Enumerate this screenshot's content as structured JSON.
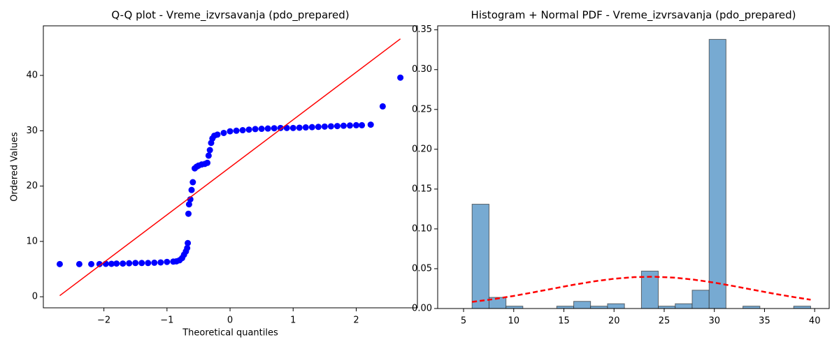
{
  "chart_data": [
    {
      "type": "scatter",
      "title": "Q-Q plot - Vreme_izvrsavanja (pdo_prepared)",
      "xlabel": "Theoretical quantiles",
      "ylabel": "Ordered Values",
      "color": "#0000ff",
      "x": [
        -2.7,
        -2.39,
        -2.2,
        -2.07,
        -1.97,
        -1.88,
        -1.8,
        -1.7,
        -1.6,
        -1.5,
        -1.4,
        -1.3,
        -1.2,
        -1.1,
        -1.0,
        -0.9,
        -0.85,
        -0.8,
        -0.76,
        -0.73,
        -0.7,
        -0.68,
        -0.67,
        -0.66,
        -0.65,
        -0.63,
        -0.61,
        -0.59,
        -0.56,
        -0.53,
        -0.5,
        -0.45,
        -0.4,
        -0.36,
        -0.34,
        -0.32,
        -0.3,
        -0.28,
        -0.25,
        -0.2,
        -0.1,
        0,
        0.1,
        0.2,
        0.3,
        0.4,
        0.5,
        0.6,
        0.7,
        0.8,
        0.9,
        1.0,
        1.1,
        1.2,
        1.3,
        1.4,
        1.5,
        1.6,
        1.7,
        1.8,
        1.9,
        2.0,
        2.09,
        2.23,
        2.42,
        2.7
      ],
      "values": [
        5.9,
        5.9,
        5.9,
        5.9,
        5.95,
        5.95,
        6.0,
        6.0,
        6.05,
        6.1,
        6.1,
        6.1,
        6.15,
        6.2,
        6.3,
        6.35,
        6.4,
        6.6,
        7.0,
        7.6,
        8.2,
        8.8,
        9.7,
        15.0,
        16.7,
        17.6,
        19.3,
        20.7,
        23.2,
        23.5,
        23.7,
        23.9,
        24.0,
        24.2,
        25.5,
        26.5,
        27.8,
        28.6,
        29.1,
        29.3,
        29.6,
        29.9,
        30.0,
        30.1,
        30.2,
        30.3,
        30.35,
        30.4,
        30.45,
        30.5,
        30.5,
        30.5,
        30.55,
        30.6,
        30.65,
        30.7,
        30.75,
        30.8,
        30.85,
        30.9,
        30.95,
        31.0,
        31.0,
        31.1,
        34.4,
        39.6
      ],
      "line": {
        "color": "#ff0000",
        "x": [
          -2.7,
          2.7
        ],
        "values": [
          0.2,
          46.6
        ]
      },
      "xlim": [
        -2.96,
        2.97
      ],
      "ylim": [
        -2.0,
        48.96
      ],
      "xticks": [
        {
          "value": -2,
          "label": "−2"
        },
        {
          "value": -1,
          "label": "−1"
        },
        0,
        1,
        2
      ],
      "yticks": [
        0,
        10,
        20,
        30,
        40
      ]
    },
    {
      "type": "histogram",
      "title": "Histogram + Normal PDF - Vreme_izvrsavanja (pdo_prepared)",
      "color": "#77aad2",
      "bins": [
        5.85,
        7.54,
        9.23,
        10.91,
        12.6,
        14.29,
        15.98,
        17.66,
        19.35,
        21.04,
        22.73,
        24.41,
        26.1,
        27.79,
        29.48,
        31.16,
        32.85,
        34.54,
        36.23,
        37.91,
        39.6
      ],
      "values": [
        0.131,
        0.014,
        0.003,
        0,
        0,
        0.003,
        0.009,
        0.003,
        0.006,
        0,
        0.047,
        0.003,
        0.006,
        0.023,
        0.338,
        0,
        0.003,
        0,
        0,
        0.003
      ],
      "pdf": {
        "color": "#ff0000",
        "style": "dashed",
        "x": [
          5.85,
          8,
          10,
          12,
          14,
          16,
          18,
          20,
          22,
          24,
          26,
          28,
          30,
          32,
          34,
          36,
          38,
          39.6
        ],
        "values": [
          0.0083,
          0.0118,
          0.0158,
          0.0204,
          0.0252,
          0.0299,
          0.0341,
          0.0374,
          0.0394,
          0.0399,
          0.0388,
          0.0362,
          0.0325,
          0.028,
          0.0232,
          0.0185,
          0.0142,
          0.0111
        ]
      },
      "xlim": [
        2.42,
        41.45
      ],
      "ylim": [
        0,
        0.355
      ],
      "xticks": [
        5,
        10,
        15,
        20,
        25,
        30,
        35,
        40
      ],
      "yticks": [
        {
          "value": 0,
          "label": "0.00"
        },
        {
          "value": 0.05,
          "label": "0.05"
        },
        {
          "value": 0.1,
          "label": "0.10"
        },
        {
          "value": 0.15,
          "label": "0.15"
        },
        {
          "value": 0.2,
          "label": "0.20"
        },
        {
          "value": 0.25,
          "label": "0.25"
        },
        {
          "value": 0.3,
          "label": "0.30"
        },
        {
          "value": 0.35,
          "label": "0.35"
        }
      ]
    }
  ]
}
